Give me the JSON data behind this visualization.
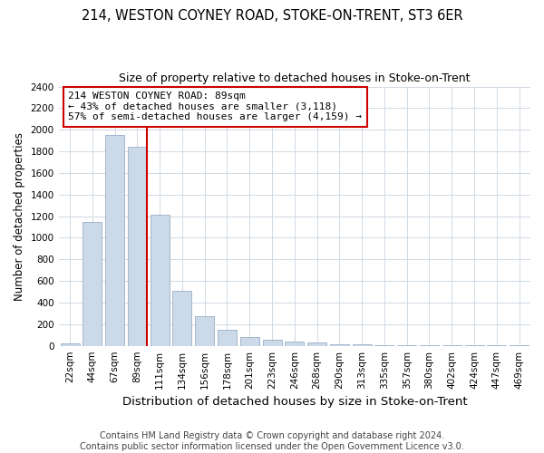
{
  "title1": "214, WESTON COYNEY ROAD, STOKE-ON-TRENT, ST3 6ER",
  "title2": "Size of property relative to detached houses in Stoke-on-Trent",
  "xlabel": "Distribution of detached houses by size in Stoke-on-Trent",
  "ylabel": "Number of detached properties",
  "bar_labels": [
    "22sqm",
    "44sqm",
    "67sqm",
    "89sqm",
    "111sqm",
    "134sqm",
    "156sqm",
    "178sqm",
    "201sqm",
    "223sqm",
    "246sqm",
    "268sqm",
    "290sqm",
    "313sqm",
    "335sqm",
    "357sqm",
    "380sqm",
    "402sqm",
    "424sqm",
    "447sqm",
    "469sqm"
  ],
  "bar_heights": [
    25,
    1150,
    1950,
    1840,
    1210,
    510,
    270,
    150,
    80,
    55,
    40,
    35,
    15,
    10,
    5,
    5,
    3,
    3,
    2,
    2,
    2
  ],
  "bar_color": "#ccd9e8",
  "bar_edgecolor": "#99aec8",
  "vline_x_index": 3,
  "vline_color": "#cc0000",
  "annotation_title": "214 WESTON COYNEY ROAD: 89sqm",
  "annotation_line1": "← 43% of detached houses are smaller (3,118)",
  "annotation_line2": "57% of semi-detached houses are larger (4,159) →",
  "annotation_box_color": "#cc0000",
  "annotation_bg": "#ffffff",
  "ylim": [
    0,
    2400
  ],
  "yticks": [
    0,
    200,
    400,
    600,
    800,
    1000,
    1200,
    1400,
    1600,
    1800,
    2000,
    2200,
    2400
  ],
  "footer1": "Contains HM Land Registry data © Crown copyright and database right 2024.",
  "footer2": "Contains public sector information licensed under the Open Government Licence v3.0.",
  "bg_color": "#ffffff",
  "grid_color": "#d0dae4",
  "title1_fontsize": 10.5,
  "title2_fontsize": 9,
  "xlabel_fontsize": 9.5,
  "ylabel_fontsize": 8.5,
  "tick_fontsize": 7.5,
  "annotation_fontsize": 8,
  "footer_fontsize": 7
}
